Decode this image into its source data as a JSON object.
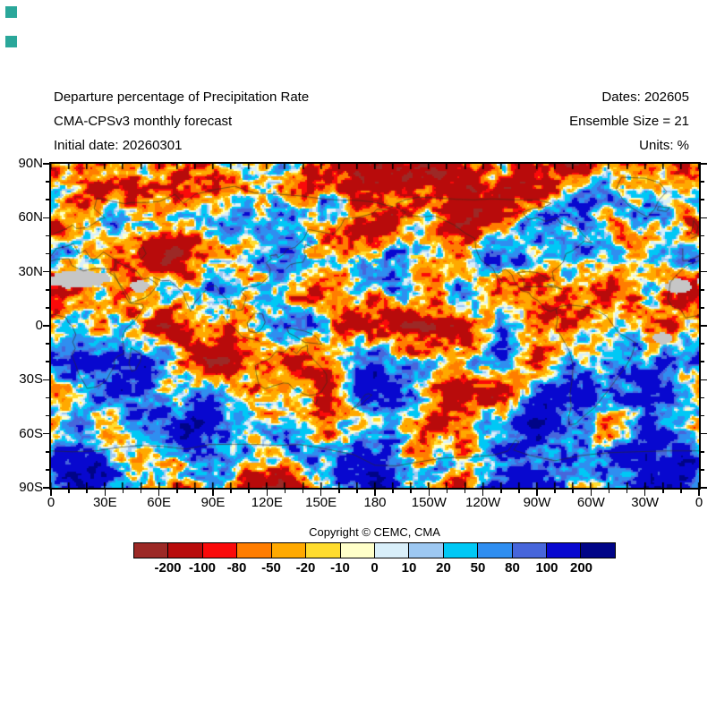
{
  "page": {
    "background": "#ffffff"
  },
  "corner_markers": {
    "color": "#2aa79a"
  },
  "header": {
    "title": "Departure percentage of Precipitation Rate",
    "subtitle": "CMA-CPSv3 monthly forecast",
    "initial_date_line": "Initial date: 20260301",
    "dates_line": "Dates: 202605",
    "ensemble_line": "Ensemble Size = 21",
    "units_line": "Units: %"
  },
  "footer": {
    "copyright": "Copyright © CEMC, CMA"
  },
  "chart_data": {
    "type": "heatmap",
    "title": "Departure percentage of Precipitation Rate",
    "model": "CMA-CPSv3 monthly forecast",
    "initial_date": "20260301",
    "forecast_dates": "202605",
    "ensemble_size": 21,
    "units": "%",
    "projection": "equirectangular world map, lon 0E eastward to 0 (360), lat 90N to 90S",
    "lon_range": [
      0,
      360
    ],
    "lat_range": [
      -90,
      90
    ],
    "grid_on": false,
    "lon_tick_labels": [
      "0",
      "30E",
      "60E",
      "90E",
      "120E",
      "150E",
      "180",
      "150W",
      "120W",
      "90W",
      "60W",
      "30W",
      "0"
    ],
    "lat_tick_labels": [
      "90N",
      "60N",
      "30N",
      "0",
      "30S",
      "60S",
      "90S"
    ],
    "minor_tick_step_deg": 10,
    "colorbar": {
      "position": "bottom",
      "levels": [
        -200,
        -100,
        -80,
        -50,
        -20,
        -10,
        0,
        10,
        20,
        50,
        80,
        100,
        200
      ],
      "colors": [
        "#9c2926",
        "#b80b0b",
        "#fa0a0a",
        "#ff7d00",
        "#ffa900",
        "#ffdc2e",
        "#ffffc9",
        "#d9effa",
        "#9dc8f2",
        "#00c8f5",
        "#2f8ef0",
        "#4766db",
        "#0808cf",
        "#000487"
      ],
      "label_color": "#000000"
    },
    "missing_data_color": "#c6c6c6",
    "missing_regions": [
      {
        "name": "sahara",
        "lon": 15,
        "lat": 26,
        "rlon": 16,
        "rlat": 5
      },
      {
        "name": "west-sahara",
        "lon": 349,
        "lat": 22,
        "rlon": 7,
        "rlat": 4
      },
      {
        "name": "arabia",
        "lon": 49,
        "lat": 22,
        "rlon": 5,
        "rlat": 3.5
      },
      {
        "name": "ne-brazil-atlantic",
        "lon": 340,
        "lat": -7,
        "rlon": 6,
        "rlat": 3
      }
    ],
    "coastline_color": "#2d2d19",
    "coarse_anomaly_grid_pct": {
      "comment": "approximate large-scale departure (%) read from the map on a 20-degree grid; negative = dry anomaly (warm colors), positive = wet anomaly (cool colors)",
      "lon_centers_start": 10,
      "lon_step": 20,
      "lat_centers_start": 80,
      "lat_step": -20,
      "values": [
        [
          -60,
          -70,
          -50,
          -60,
          -30,
          20,
          -50,
          -70,
          -80,
          -80,
          -70,
          -60,
          -70,
          -50,
          -60,
          10,
          -50,
          -60
        ],
        [
          -40,
          30,
          -20,
          40,
          -30,
          50,
          30,
          60,
          -40,
          -50,
          -20,
          -60,
          -70,
          50,
          40,
          -30,
          20,
          -30
        ],
        [
          20,
          -30,
          -50,
          -80,
          -60,
          40,
          30,
          -40,
          -50,
          30,
          -40,
          -30,
          40,
          -20,
          30,
          40,
          -40,
          20
        ],
        [
          -50,
          -30,
          20,
          80,
          60,
          -30,
          40,
          -20,
          50,
          40,
          -30,
          30,
          -50,
          -60,
          -40,
          -60,
          10,
          -40
        ],
        [
          -20,
          -40,
          -60,
          -50,
          -70,
          -40,
          50,
          30,
          -70,
          -80,
          -60,
          -50,
          30,
          -40,
          -50,
          -30,
          -20,
          -30
        ],
        [
          30,
          50,
          90,
          -60,
          -80,
          -70,
          -80,
          -50,
          40,
          30,
          50,
          20,
          60,
          -30,
          20,
          40,
          30,
          20
        ],
        [
          40,
          30,
          20,
          30,
          20,
          10,
          -30,
          -50,
          30,
          20,
          -40,
          -60,
          -50,
          40,
          50,
          30,
          40,
          50
        ],
        [
          50,
          -30,
          -40,
          60,
          70,
          40,
          30,
          -20,
          50,
          60,
          -40,
          -50,
          40,
          60,
          30,
          -30,
          40,
          60
        ],
        [
          80,
          70,
          30,
          -20,
          60,
          -50,
          -70,
          50,
          90,
          80,
          40,
          -40,
          60,
          90,
          70,
          50,
          80,
          90
        ]
      ]
    },
    "copyright": "Copyright © CEMC, CMA"
  }
}
